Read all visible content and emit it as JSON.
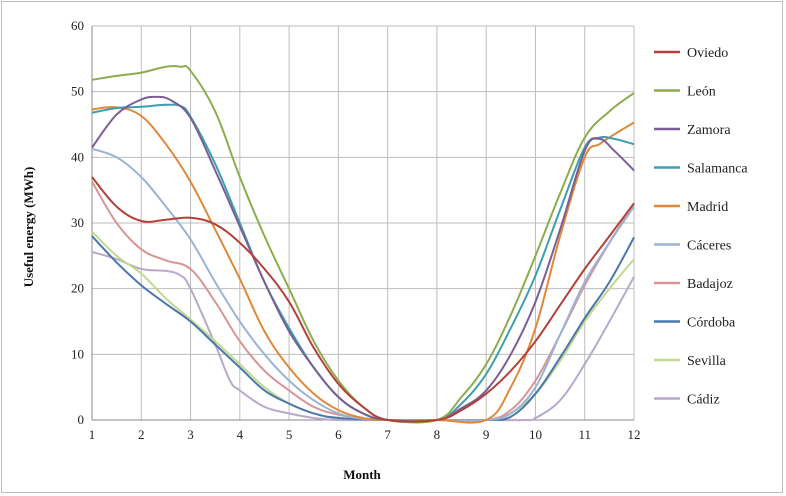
{
  "chart_data": {
    "type": "line",
    "title": "",
    "xlabel": "Month",
    "ylabel": "Useful energy  (MWh)",
    "xlim": [
      1,
      12
    ],
    "ylim": [
      0,
      60
    ],
    "x_ticks": [
      1,
      2,
      3,
      4,
      5,
      6,
      7,
      8,
      9,
      10,
      11,
      12
    ],
    "y_ticks": [
      0,
      10,
      20,
      30,
      40,
      50,
      60
    ],
    "grid": "both",
    "legend_position": "right",
    "series": [
      {
        "name": "Oviedo",
        "color": "#b5403a",
        "points": [
          [
            1,
            37
          ],
          [
            1.5,
            32.5
          ],
          [
            2,
            30.3
          ],
          [
            2.5,
            30.5
          ],
          [
            3,
            30.8
          ],
          [
            3.5,
            29.8
          ],
          [
            4,
            27
          ],
          [
            4.5,
            23
          ],
          [
            5,
            18
          ],
          [
            5.5,
            11
          ],
          [
            6,
            5.5
          ],
          [
            6.5,
            2
          ],
          [
            7,
            0
          ],
          [
            8,
            0
          ],
          [
            8.5,
            1.5
          ],
          [
            9,
            4
          ],
          [
            9.5,
            7.5
          ],
          [
            10,
            12
          ],
          [
            10.5,
            17.5
          ],
          [
            11,
            23
          ],
          [
            11.5,
            28
          ],
          [
            12,
            33
          ]
        ]
      },
      {
        "name": "León",
        "color": "#8eac4d",
        "points": [
          [
            1,
            51.8
          ],
          [
            1.5,
            52.4
          ],
          [
            2,
            52.9
          ],
          [
            2.5,
            53.8
          ],
          [
            2.8,
            53.8
          ],
          [
            3,
            53.2
          ],
          [
            3.5,
            47
          ],
          [
            4,
            37
          ],
          [
            4.5,
            28
          ],
          [
            5,
            20
          ],
          [
            5.5,
            12
          ],
          [
            6,
            6
          ],
          [
            6.5,
            2
          ],
          [
            7,
            0
          ],
          [
            8,
            0
          ],
          [
            8.5,
            3.5
          ],
          [
            9,
            8.5
          ],
          [
            9.5,
            16
          ],
          [
            10,
            25
          ],
          [
            10.5,
            34.5
          ],
          [
            11,
            43
          ],
          [
            11.5,
            47
          ],
          [
            12,
            49.8
          ]
        ]
      },
      {
        "name": "Zamora",
        "color": "#7a5f96",
        "points": [
          [
            1,
            41.5
          ],
          [
            1.5,
            46.5
          ],
          [
            2,
            48.8
          ],
          [
            2.3,
            49.2
          ],
          [
            2.6,
            48.7
          ],
          [
            3,
            46
          ],
          [
            3.5,
            38
          ],
          [
            4,
            29.5
          ],
          [
            4.5,
            21
          ],
          [
            5,
            13.5
          ],
          [
            5.5,
            8
          ],
          [
            6,
            3.5
          ],
          [
            6.5,
            1
          ],
          [
            7,
            0
          ],
          [
            8,
            0
          ],
          [
            8.5,
            1.8
          ],
          [
            9,
            4.5
          ],
          [
            9.5,
            10
          ],
          [
            10,
            18
          ],
          [
            10.5,
            29
          ],
          [
            11,
            41
          ],
          [
            11.3,
            42.8
          ],
          [
            11.6,
            41
          ],
          [
            12,
            38
          ]
        ]
      },
      {
        "name": "Salamanca",
        "color": "#3d9fae",
        "points": [
          [
            1,
            46.8
          ],
          [
            1.5,
            47.5
          ],
          [
            2,
            47.7
          ],
          [
            2.5,
            48
          ],
          [
            2.8,
            47.8
          ],
          [
            3,
            46.2
          ],
          [
            3.5,
            39
          ],
          [
            4,
            30
          ],
          [
            4.5,
            21
          ],
          [
            5,
            14
          ],
          [
            5.5,
            8
          ],
          [
            6,
            3.5
          ],
          [
            6.5,
            1
          ],
          [
            7,
            0
          ],
          [
            8,
            0
          ],
          [
            8.5,
            2.5
          ],
          [
            9,
            7
          ],
          [
            9.5,
            14
          ],
          [
            10,
            22
          ],
          [
            10.5,
            32
          ],
          [
            11,
            41.5
          ],
          [
            11.3,
            43
          ],
          [
            11.6,
            42.8
          ],
          [
            12,
            42
          ]
        ]
      },
      {
        "name": "Madrid",
        "color": "#e0883a",
        "points": [
          [
            1,
            47.3
          ],
          [
            1.5,
            47.6
          ],
          [
            2,
            46.3
          ],
          [
            2.5,
            42
          ],
          [
            3,
            36.3
          ],
          [
            3.5,
            29
          ],
          [
            4,
            21.5
          ],
          [
            4.5,
            13.5
          ],
          [
            5,
            8
          ],
          [
            5.5,
            4
          ],
          [
            6,
            1.5
          ],
          [
            6.5,
            0.3
          ],
          [
            7,
            0
          ],
          [
            8,
            0
          ],
          [
            9,
            0
          ],
          [
            9.5,
            5
          ],
          [
            10,
            14
          ],
          [
            10.5,
            28
          ],
          [
            11,
            40
          ],
          [
            11.3,
            42
          ],
          [
            11.6,
            43.5
          ],
          [
            12,
            45.3
          ]
        ]
      },
      {
        "name": "Cáceres",
        "color": "#9bb3d5",
        "points": [
          [
            1,
            41.3
          ],
          [
            1.5,
            40
          ],
          [
            2,
            37
          ],
          [
            2.5,
            32.5
          ],
          [
            3,
            27.5
          ],
          [
            3.5,
            21
          ],
          [
            4,
            15
          ],
          [
            4.5,
            10
          ],
          [
            5,
            6
          ],
          [
            5.5,
            3
          ],
          [
            6,
            1
          ],
          [
            6.5,
            0.2
          ],
          [
            7,
            0
          ],
          [
            8,
            0
          ],
          [
            9,
            0
          ],
          [
            9.5,
            1
          ],
          [
            10,
            5
          ],
          [
            10.5,
            13
          ],
          [
            11,
            21
          ],
          [
            11.5,
            27
          ],
          [
            12,
            32.5
          ]
        ]
      },
      {
        "name": "Badajoz",
        "color": "#d99493",
        "points": [
          [
            1,
            36.3
          ],
          [
            1.5,
            30
          ],
          [
            2,
            26
          ],
          [
            2.5,
            24.3
          ],
          [
            3,
            23
          ],
          [
            3.5,
            18
          ],
          [
            4,
            12
          ],
          [
            4.5,
            7.5
          ],
          [
            5,
            4.5
          ],
          [
            5.5,
            2
          ],
          [
            6,
            0.8
          ],
          [
            6.5,
            0.2
          ],
          [
            7,
            0
          ],
          [
            8,
            0
          ],
          [
            9,
            0
          ],
          [
            9.5,
            1.5
          ],
          [
            10,
            6
          ],
          [
            10.5,
            13
          ],
          [
            11,
            20.5
          ],
          [
            11.5,
            27
          ],
          [
            12,
            33
          ]
        ]
      },
      {
        "name": "Córdoba",
        "color": "#4a78ad",
        "points": [
          [
            1,
            28
          ],
          [
            1.5,
            24
          ],
          [
            2,
            20.5
          ],
          [
            2.5,
            17.7
          ],
          [
            3,
            15
          ],
          [
            3.5,
            11.5
          ],
          [
            4,
            8
          ],
          [
            4.5,
            4.5
          ],
          [
            5,
            2.5
          ],
          [
            5.5,
            1
          ],
          [
            6,
            0.3
          ],
          [
            7,
            0
          ],
          [
            8,
            0
          ],
          [
            9,
            0
          ],
          [
            9.5,
            0.5
          ],
          [
            10,
            4
          ],
          [
            10.5,
            9.5
          ],
          [
            11,
            15.5
          ],
          [
            11.5,
            21
          ],
          [
            12,
            27.8
          ]
        ]
      },
      {
        "name": "Sevilla",
        "color": "#c1d88f",
        "points": [
          [
            1,
            28.7
          ],
          [
            1.5,
            25
          ],
          [
            2,
            22.3
          ],
          [
            2.5,
            18.5
          ],
          [
            3,
            15.3
          ],
          [
            3.5,
            12
          ],
          [
            4,
            8.5
          ],
          [
            4.5,
            5
          ],
          [
            5,
            2.5
          ],
          [
            5.5,
            1
          ],
          [
            6,
            0.3
          ],
          [
            7,
            0
          ],
          [
            8,
            0
          ],
          [
            9,
            0
          ],
          [
            9.5,
            1
          ],
          [
            10,
            4
          ],
          [
            10.5,
            9
          ],
          [
            11,
            15
          ],
          [
            11.5,
            20
          ],
          [
            12,
            24.5
          ]
        ]
      },
      {
        "name": "Cádiz",
        "color": "#b8a8cc",
        "points": [
          [
            1,
            25.6
          ],
          [
            1.5,
            24.5
          ],
          [
            2,
            23
          ],
          [
            2.5,
            22.7
          ],
          [
            2.8,
            22
          ],
          [
            3,
            20
          ],
          [
            3.5,
            11.5
          ],
          [
            3.8,
            6
          ],
          [
            4,
            4.5
          ],
          [
            4.5,
            2
          ],
          [
            5,
            1
          ],
          [
            5.5,
            0.3
          ],
          [
            6,
            0
          ],
          [
            7,
            0
          ],
          [
            8,
            0
          ],
          [
            9,
            0
          ],
          [
            9.8,
            0
          ],
          [
            10,
            0.3
          ],
          [
            10.5,
            3
          ],
          [
            11,
            8.5
          ],
          [
            11.5,
            15
          ],
          [
            12,
            21.8
          ]
        ]
      }
    ]
  }
}
